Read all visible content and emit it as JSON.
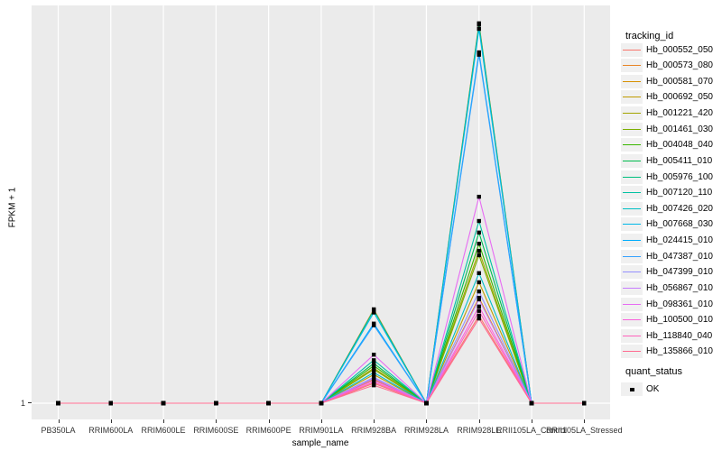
{
  "chart_data": {
    "type": "line",
    "title": "",
    "xlabel": "sample_name",
    "ylabel": "FPKM + 1",
    "y_axis": {
      "ticks": [
        "1"
      ],
      "note": "Only the value 1 is labeled on the y axis; series values below are estimated as fraction of panel height above the y=1 baseline."
    },
    "grid": "vertical-major-white-on-gray",
    "panel_bg": "#EBEBEB",
    "gridline_color": "#FFFFFF",
    "point_color": "#000000",
    "categories": [
      "PB350LA",
      "RRIM600LA",
      "RRIM600LE",
      "RRIM600SE",
      "RRIM600PE",
      "RRIM901LA",
      "RRIM928BA",
      "RRIM928LA",
      "RRIM928LE",
      "RRII105LA_Control",
      "RRII105LA_Stressed"
    ],
    "legend": {
      "title": "tracking_id",
      "position": "right"
    },
    "quant_legend": {
      "title": "quant_status",
      "items": [
        {
          "label": "OK",
          "marker": "black-square"
        }
      ]
    },
    "series": [
      {
        "name": "Hb_000552_050",
        "color": "#F8766D",
        "values": [
          0,
          0,
          0,
          0,
          0,
          0,
          0.05,
          0,
          0.22,
          0,
          0
        ]
      },
      {
        "name": "Hb_000573_080",
        "color": "#E88526",
        "values": [
          0,
          0,
          0,
          0,
          0,
          0,
          0.236,
          0,
          0.955,
          0,
          0
        ]
      },
      {
        "name": "Hb_000581_070",
        "color": "#D89000",
        "values": [
          0,
          0,
          0,
          0,
          0,
          0,
          0.06,
          0,
          0.265,
          0,
          0
        ]
      },
      {
        "name": "Hb_000692_050",
        "color": "#C09B00",
        "values": [
          0,
          0,
          0,
          0,
          0,
          0,
          0.072,
          0,
          0.304,
          0,
          0
        ]
      },
      {
        "name": "Hb_001221_420",
        "color": "#A3A500",
        "values": [
          0,
          0,
          0,
          0,
          0,
          0,
          0.088,
          0,
          0.383,
          0,
          0
        ]
      },
      {
        "name": "Hb_001461_030",
        "color": "#7CAE00",
        "values": [
          0,
          0,
          0,
          0,
          0,
          0,
          0.085,
          0,
          0.372,
          0,
          0
        ]
      },
      {
        "name": "Hb_004048_040",
        "color": "#39B600",
        "values": [
          0,
          0,
          0,
          0,
          0,
          0,
          0.094,
          0,
          0.401,
          0,
          0
        ]
      },
      {
        "name": "Hb_005411_010",
        "color": "#00BB4E",
        "values": [
          0,
          0,
          0,
          0,
          0,
          0,
          0.1,
          0,
          0.429,
          0,
          0
        ]
      },
      {
        "name": "Hb_005976_100",
        "color": "#00BF7D",
        "values": [
          0,
          0,
          0,
          0,
          0,
          0,
          0.234,
          0,
          0.952,
          0,
          0
        ]
      },
      {
        "name": "Hb_007120_110",
        "color": "#00C1A3",
        "values": [
          0,
          0,
          0,
          0,
          0,
          0,
          0.108,
          0,
          0.458,
          0,
          0
        ]
      },
      {
        "name": "Hb_007426_020",
        "color": "#00BFC4",
        "values": [
          0,
          0,
          0,
          0,
          0,
          0,
          0.077,
          0,
          0.327,
          0,
          0
        ]
      },
      {
        "name": "Hb_007668_030",
        "color": "#00B8E7",
        "values": [
          0,
          0,
          0,
          0,
          0,
          0,
          0.228,
          0,
          0.941,
          0,
          0
        ]
      },
      {
        "name": "Hb_024415_010",
        "color": "#00ACFC",
        "values": [
          0,
          0,
          0,
          0,
          0,
          0,
          0.2,
          0,
          0.882,
          0,
          0
        ]
      },
      {
        "name": "Hb_047387_010",
        "color": "#35A2FF",
        "values": [
          0,
          0,
          0,
          0,
          0,
          0,
          0.196,
          0,
          0.876,
          0,
          0
        ]
      },
      {
        "name": "Hb_047399_010",
        "color": "#9590FF",
        "values": [
          0,
          0,
          0,
          0,
          0,
          0,
          0.065,
          0,
          0.281,
          0,
          0
        ]
      },
      {
        "name": "Hb_056867_010",
        "color": "#C77CFF",
        "values": [
          0,
          0,
          0,
          0,
          0,
          0,
          0.062,
          0,
          0.261,
          0,
          0
        ]
      },
      {
        "name": "Hb_098361_010",
        "color": "#E76BF3",
        "values": [
          0,
          0,
          0,
          0,
          0,
          0,
          0.122,
          0,
          0.519,
          0,
          0
        ]
      },
      {
        "name": "Hb_100500_010",
        "color": "#FA62DB",
        "values": [
          0,
          0,
          0,
          0,
          0,
          0,
          0.057,
          0,
          0.243,
          0,
          0
        ]
      },
      {
        "name": "Hb_118840_040",
        "color": "#FF62BC",
        "values": [
          0,
          0,
          0,
          0,
          0,
          0,
          0.053,
          0,
          0.232,
          0,
          0
        ]
      },
      {
        "name": "Hb_135866_010",
        "color": "#FF6C90",
        "values": [
          0,
          0,
          0,
          0,
          0,
          0,
          0.045,
          0,
          0.213,
          0,
          0
        ]
      }
    ]
  }
}
